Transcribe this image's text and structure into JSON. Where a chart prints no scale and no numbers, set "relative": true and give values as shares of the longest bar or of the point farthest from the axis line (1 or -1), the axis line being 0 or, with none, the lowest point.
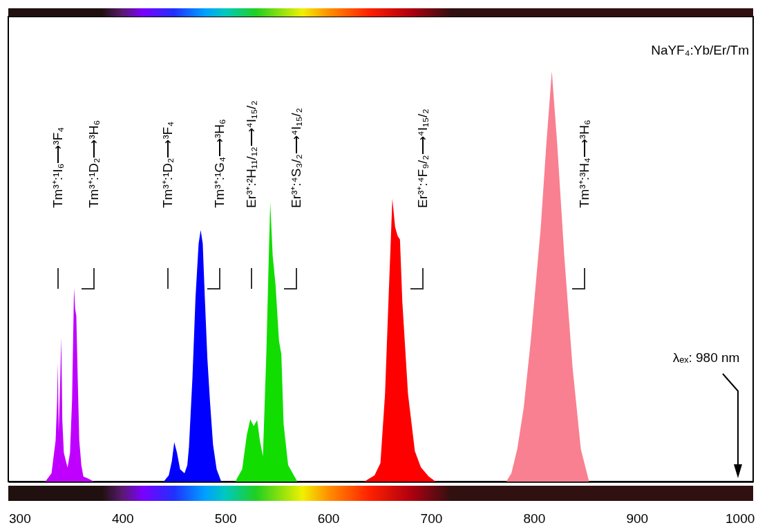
{
  "chart_data": {
    "type": "area",
    "relative": true,
    "xlim": [
      289,
      1013
    ],
    "xticks": [
      300,
      400,
      500,
      600,
      700,
      800,
      900,
      1000
    ],
    "series": [
      {
        "color": "#c000ff",
        "x": [
          325,
          331,
          335,
          336.5,
          337.1,
          338,
          339,
          340.5,
          341.5,
          343,
          346.6,
          349,
          351,
          352.9,
          354,
          355.1,
          356.5,
          358,
          360,
          362,
          366,
          370,
          372
        ],
        "values": [
          0,
          0.02,
          0.1,
          0.2,
          0.29,
          0.12,
          0.2,
          0.35,
          0.15,
          0.07,
          0.034,
          0.07,
          0.2,
          0.472,
          0.42,
          0.404,
          0.25,
          0.1,
          0.04,
          0.012,
          0.008,
          0.003,
          0
        ]
      },
      {
        "color": "#0000ff",
        "x": [
          440,
          445,
          448,
          450.3,
          453,
          456,
          460.3,
          463,
          464.6,
          468,
          471,
          474,
          476,
          478,
          480,
          482.5,
          485,
          488,
          491.5,
          496
        ],
        "values": [
          0,
          0.015,
          0.05,
          0.096,
          0.07,
          0.03,
          0.02,
          0.04,
          0.084,
          0.253,
          0.45,
          0.58,
          0.613,
          0.58,
          0.45,
          0.3,
          0.197,
          0.09,
          0.03,
          0
        ]
      },
      {
        "color": "#11dd00",
        "x": [
          509.6,
          516.3,
          520.8,
          524.2,
          527.5,
          530.9,
          533.5,
          536.5,
          539.8,
          542,
          543.6,
          546,
          548.8,
          552.1,
          554.4,
          556.6,
          561,
          570
        ],
        "values": [
          0,
          0.03,
          0.113,
          0.152,
          0.135,
          0.15,
          0.1,
          0.062,
          0.31,
          0.53,
          0.68,
          0.55,
          0.478,
          0.343,
          0.31,
          0.14,
          0.04,
          0
        ]
      },
      {
        "color": "#ff0000",
        "x": [
          635,
          645,
          650.7,
          655.2,
          657.4,
          658.5,
          662.3,
          665,
          667.5,
          669.7,
          672,
          677.5,
          684.2,
          690,
          697.7,
          704.4
        ],
        "values": [
          0,
          0.015,
          0.045,
          0.214,
          0.365,
          0.438,
          0.689,
          0.62,
          0.598,
          0.59,
          0.438,
          0.214,
          0.074,
          0.035,
          0.012,
          0
        ]
      },
      {
        "color": "#f98090",
        "x": [
          773,
          778,
          783.7,
          790,
          797,
          806.5,
          811.9,
          817.3,
          822.6,
          829.4,
          837.4,
          845.5,
          853.5
        ],
        "values": [
          0,
          0.02,
          0.079,
          0.18,
          0.348,
          0.618,
          0.82,
          1,
          0.82,
          0.55,
          0.28,
          0.079,
          0
        ]
      }
    ],
    "annotations": [
      "Tm³⁺:¹I₆⟶³F₄",
      "Tm³⁺:¹D₂⟶³H₆",
      "Tm³⁺:¹D₂⟶³F₄",
      "Tm³⁺:¹G₄⟶³H₆",
      "Er³⁺:²H₁₁/₁₂⟶⁴I₁₅/₂",
      "Er³⁺:⁴S₃/₂⟶⁴I₁₅/₂",
      "Er³⁺:⁴F₉/₂⟶⁴I₁₅/₂",
      "Tm³⁺:³H₄⟶³H₆",
      "NaYF₄:Yb/Er/Tm",
      "λₑₓ: 980 nm"
    ]
  }
}
